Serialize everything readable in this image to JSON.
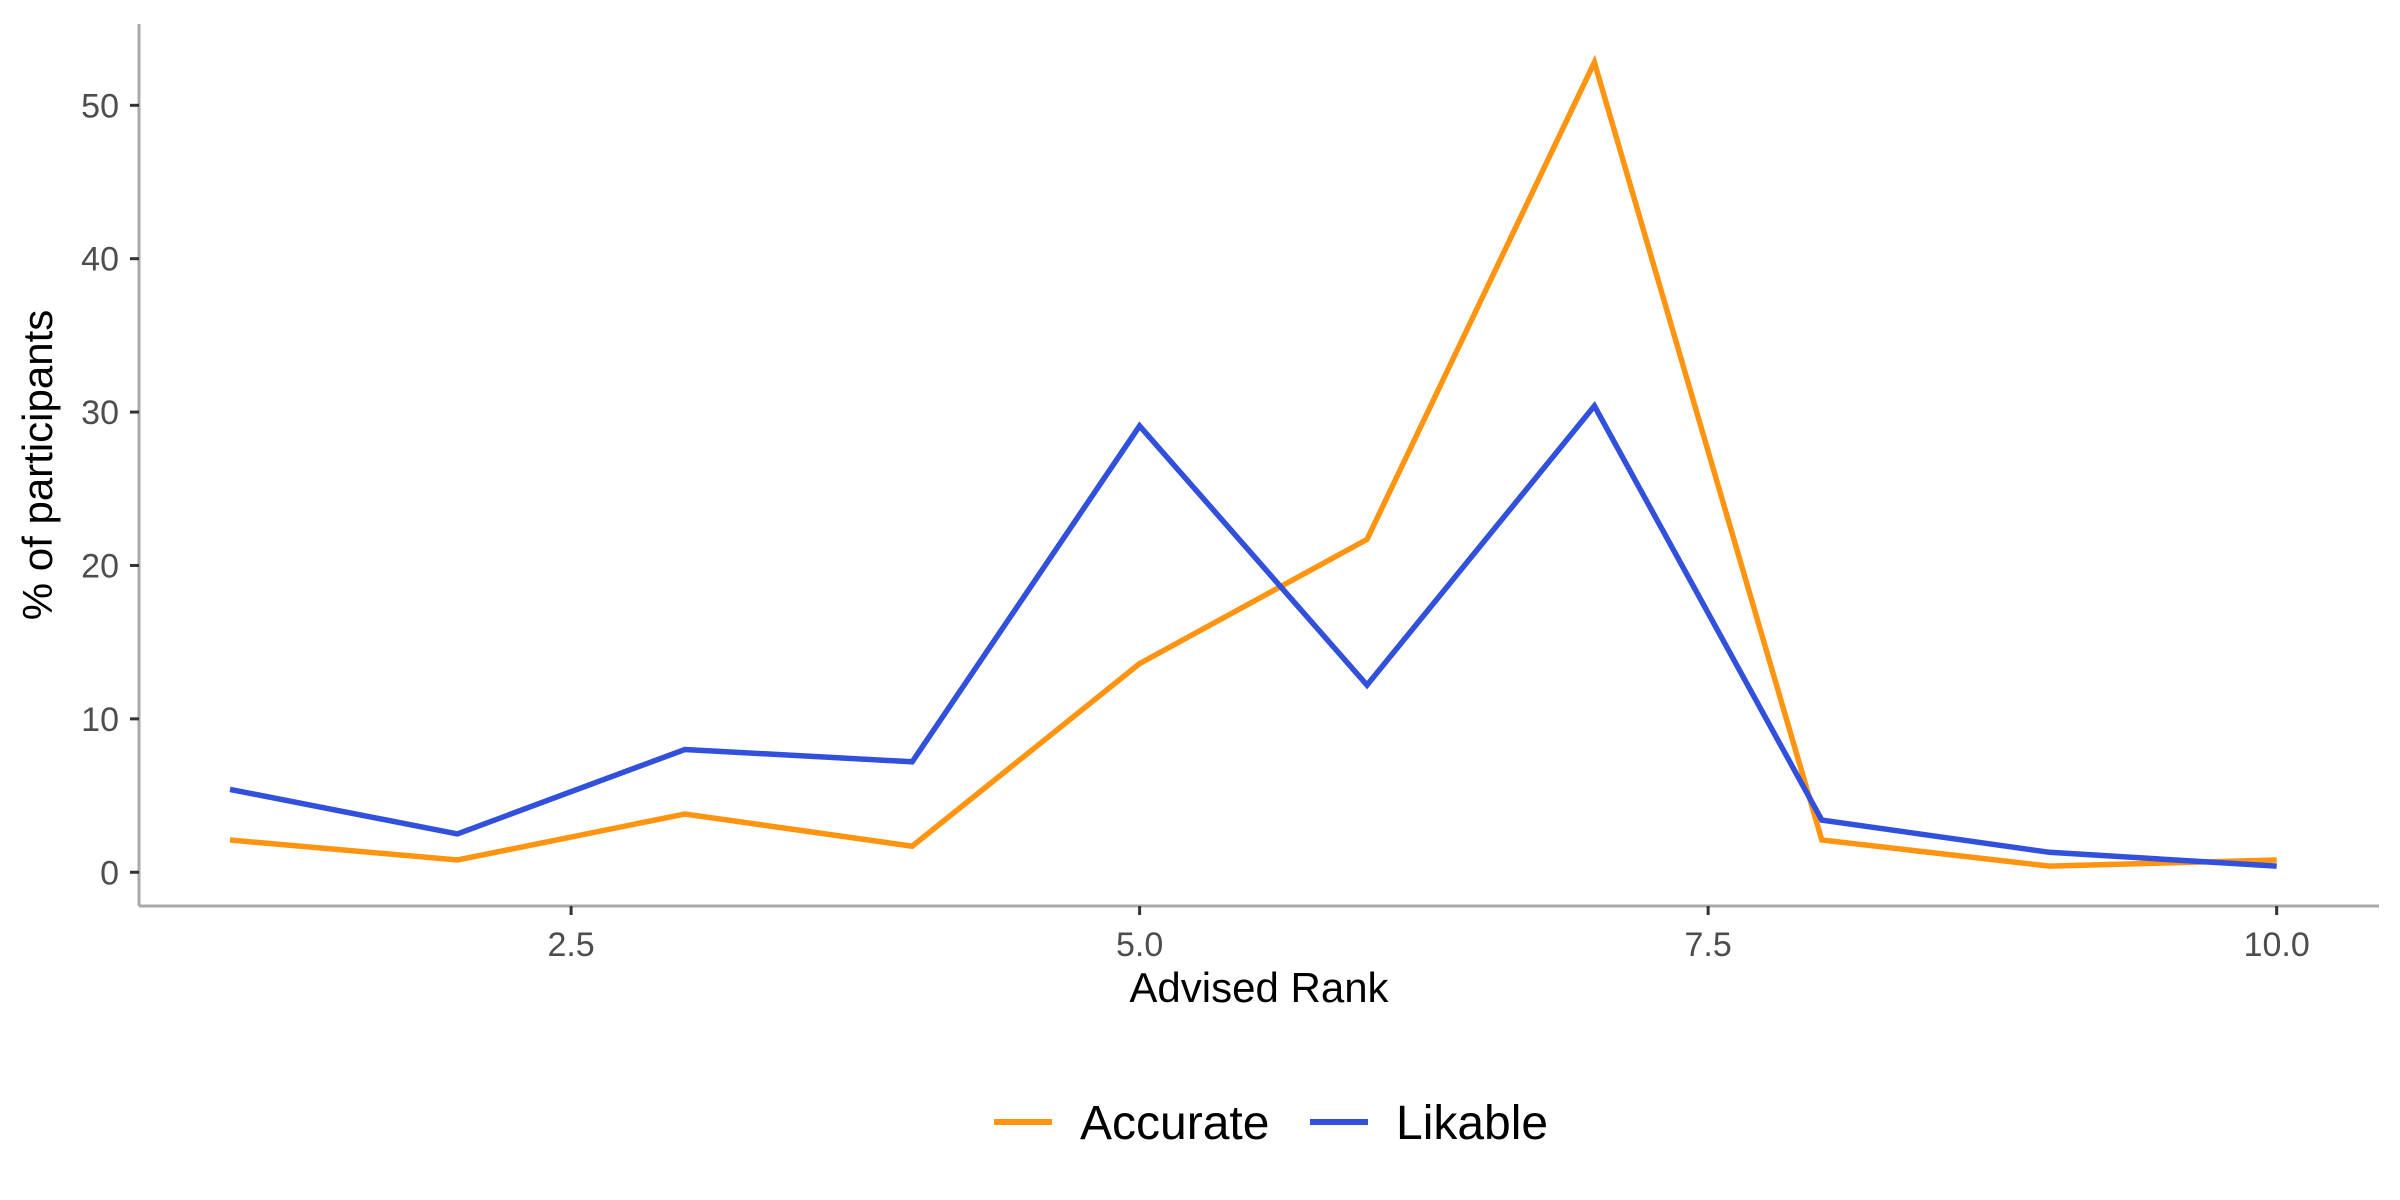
{
  "chart_data": {
    "type": "line",
    "xlabel": "Advised Rank",
    "ylabel": "% of participants",
    "xlim": [
      0.6,
      10.45
    ],
    "ylim": [
      -2.2,
      55.3
    ],
    "x_ticks": [
      2.5,
      5.0,
      7.5,
      10.0
    ],
    "x_tick_labels": [
      "2.5",
      "5.0",
      "7.5",
      "10.0"
    ],
    "y_ticks": [
      0,
      10,
      20,
      30,
      40,
      50
    ],
    "y_tick_labels": [
      "0",
      "10",
      "20",
      "30",
      "40",
      "50"
    ],
    "grid": false,
    "legend_position": "bottom",
    "x": [
      1,
      2,
      3,
      4,
      5,
      6,
      7,
      8,
      9,
      10
    ],
    "series": [
      {
        "name": "Accurate",
        "color": "#FF9410",
        "values": [
          2.1,
          0.8,
          3.8,
          1.7,
          13.6,
          21.7,
          52.8,
          2.1,
          0.4,
          0.8
        ]
      },
      {
        "name": "Likable",
        "color": "#3150DC",
        "values": [
          5.4,
          2.5,
          8.0,
          7.2,
          29.1,
          12.2,
          30.4,
          3.4,
          1.3,
          0.4
        ]
      }
    ]
  }
}
